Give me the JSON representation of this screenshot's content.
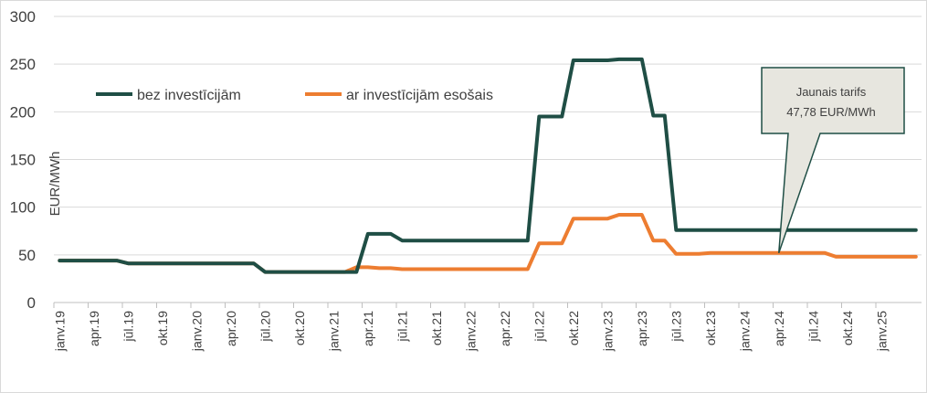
{
  "chart_data": {
    "type": "line",
    "title": "",
    "xlabel": "",
    "ylabel": "EUR/MWh",
    "ylim": [
      0,
      300
    ],
    "yticks": [
      0,
      50,
      100,
      150,
      200,
      250,
      300
    ],
    "grid": true,
    "legend_position": "top-left",
    "x_count": 76,
    "x_start": "2019-01",
    "x_tick_labels": [
      "janv.19",
      "apr.19",
      "jūl.19",
      "okt.19",
      "janv.20",
      "apr.20",
      "jūl.20",
      "okt.20",
      "janv.21",
      "apr.21",
      "jūl.21",
      "okt.21",
      "janv.22",
      "apr.22",
      "jūl.22",
      "okt.22",
      "janv.23",
      "apr.23",
      "jūl.23",
      "okt.23",
      "janv.24",
      "apr.24",
      "jūl.24",
      "okt.24",
      "janv.25"
    ],
    "series": [
      {
        "name": "bez investīcijām",
        "color": "#1f4e45",
        "values": [
          44,
          44,
          44,
          44,
          44,
          44,
          41,
          41,
          41,
          41,
          41,
          41,
          41,
          41,
          41,
          41,
          41,
          41,
          32,
          32,
          32,
          32,
          32,
          32,
          32,
          32,
          32,
          72,
          72,
          72,
          65,
          65,
          65,
          65,
          65,
          65,
          65,
          65,
          65,
          65,
          65,
          65,
          195,
          195,
          195,
          254,
          254,
          254,
          254,
          255,
          255,
          255,
          196,
          196,
          76,
          76,
          76,
          76,
          76,
          76,
          76,
          76,
          76,
          76,
          76,
          76,
          76,
          76,
          76,
          76,
          76,
          76,
          76,
          76,
          76,
          76
        ]
      },
      {
        "name": "ar investīcijām esošais",
        "color": "#ed7d31",
        "values": [
          44,
          44,
          44,
          44,
          44,
          44,
          41,
          41,
          41,
          41,
          41,
          41,
          41,
          41,
          41,
          41,
          41,
          41,
          32,
          32,
          32,
          32,
          32,
          32,
          32,
          32,
          37,
          37,
          36,
          36,
          35,
          35,
          35,
          35,
          35,
          35,
          35,
          35,
          35,
          35,
          35,
          35,
          62,
          62,
          62,
          88,
          88,
          88,
          88,
          92,
          92,
          92,
          65,
          65,
          51,
          51,
          51,
          52,
          52,
          52,
          52,
          52,
          52,
          52,
          52,
          52,
          52,
          52,
          48,
          48,
          48,
          48,
          48,
          48,
          48,
          48
        ]
      }
    ],
    "annotation": {
      "line1": "Jaunais tarifs",
      "line2": "47,78 EUR/MWh",
      "anchor_index": 63,
      "anchor_value": 52,
      "fill": "#e7e6df",
      "border": "#1f4e45"
    }
  }
}
